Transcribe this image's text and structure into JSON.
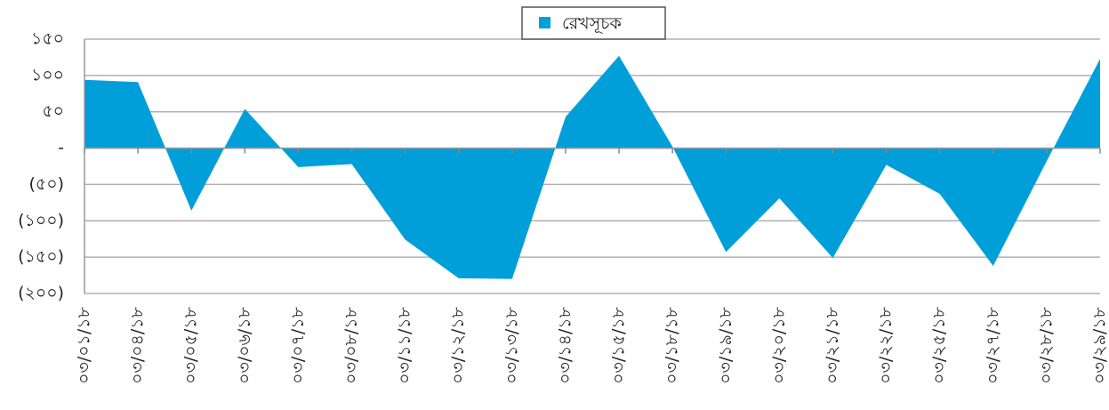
{
  "chart_data": {
    "type": "area",
    "categories": [
      "০৩/০১/১৮",
      "০৩/০৪/১৮",
      "০৩/০৫/১৮",
      "০৩/০৬/১৮",
      "০৩/০৭/১৮",
      "০৩/০৮/১৮",
      "০৩/১১/১৮",
      "০৩/১২/১৮",
      "০৩/১৩/১৮",
      "০৩/১৪/১৮",
      "০৩/১৫/১৮",
      "০৩/১৮/১৮",
      "০৩/১৯/১৮",
      "০৩/২০/১৮",
      "০৩/২১/১৮",
      "০৩/২২/১৮",
      "০৩/২৫/১৮",
      "০৩/২৭/১৮",
      "০৩/২৮/১৮",
      "০৩/২৯/১৮"
    ],
    "series": [
      {
        "name": "রেখসূচক",
        "color": "#009fda",
        "values": [
          94,
          91,
          -86,
          54,
          -26,
          -22,
          -126,
          -179,
          -180,
          43,
          127,
          2,
          -143,
          -69,
          -151,
          -23,
          -63,
          -162,
          -18,
          123
        ]
      }
    ],
    "ylim": [
      -200,
      150
    ],
    "yticks": [
      {
        "value": -200,
        "label": "(২০০)"
      },
      {
        "value": -150,
        "label": "(১৫০)"
      },
      {
        "value": -100,
        "label": "(১০০)"
      },
      {
        "value": -50,
        "label": "(৫০)"
      },
      {
        "value": 0,
        "label": "-"
      },
      {
        "value": 50,
        "label": "৫০"
      },
      {
        "value": 100,
        "label": "১০০"
      },
      {
        "value": 150,
        "label": "১৫০"
      }
    ],
    "grid": true,
    "legend": "top"
  }
}
